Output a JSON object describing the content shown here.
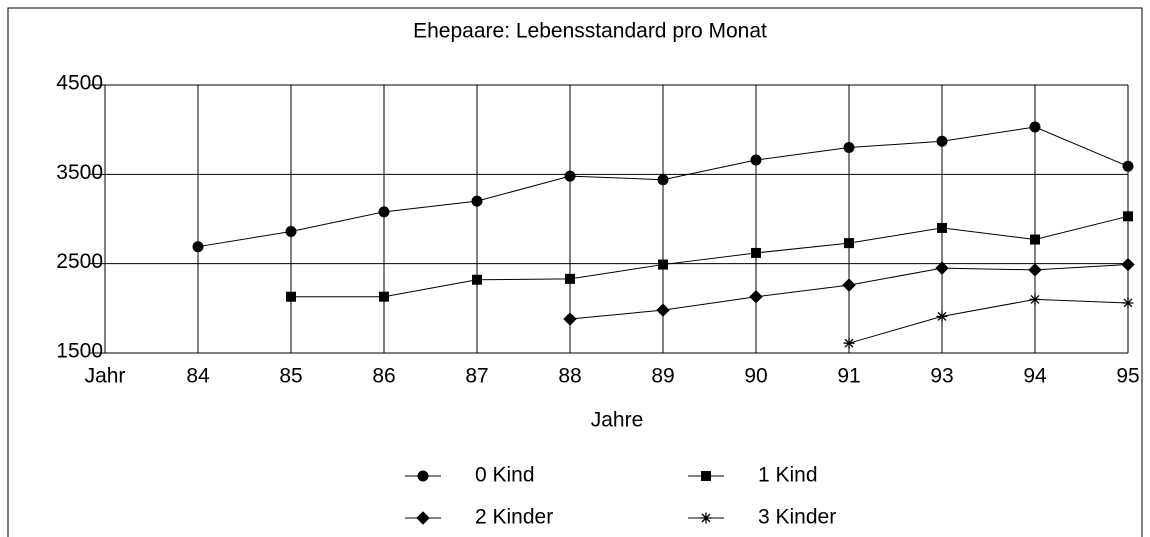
{
  "chart_data": {
    "type": "line",
    "title": "Ehepaare: Lebensstandard pro Monat",
    "x_label": "Jahre",
    "categories": [
      "Jahr",
      "84",
      "85",
      "86",
      "87",
      "88",
      "89",
      "90",
      "91",
      "93",
      "94",
      "95"
    ],
    "ylim": [
      1500,
      4500
    ],
    "yticks": [
      1500,
      2500,
      3500,
      4500
    ],
    "grid": true,
    "legend": "bottom",
    "series": [
      {
        "name": "0 Kind",
        "color": "#000000",
        "marker": "circle",
        "values": [
          null,
          2690,
          2860,
          3080,
          3200,
          3480,
          3440,
          3660,
          3800,
          3870,
          4030,
          3590
        ]
      },
      {
        "name": "1 Kind",
        "color": "#000000",
        "marker": "square",
        "values": [
          null,
          null,
          2130,
          2130,
          2320,
          2330,
          2490,
          2620,
          2730,
          2900,
          2770,
          3030
        ]
      },
      {
        "name": "2 Kinder",
        "color": "#000000",
        "marker": "diamond",
        "values": [
          null,
          null,
          null,
          null,
          null,
          1880,
          1980,
          2130,
          2260,
          2450,
          2430,
          2490
        ]
      },
      {
        "name": "3 Kinder",
        "color": "#000000",
        "marker": "star",
        "values": [
          null,
          null,
          null,
          null,
          null,
          null,
          null,
          null,
          1610,
          1910,
          2100,
          2060
        ]
      }
    ]
  }
}
